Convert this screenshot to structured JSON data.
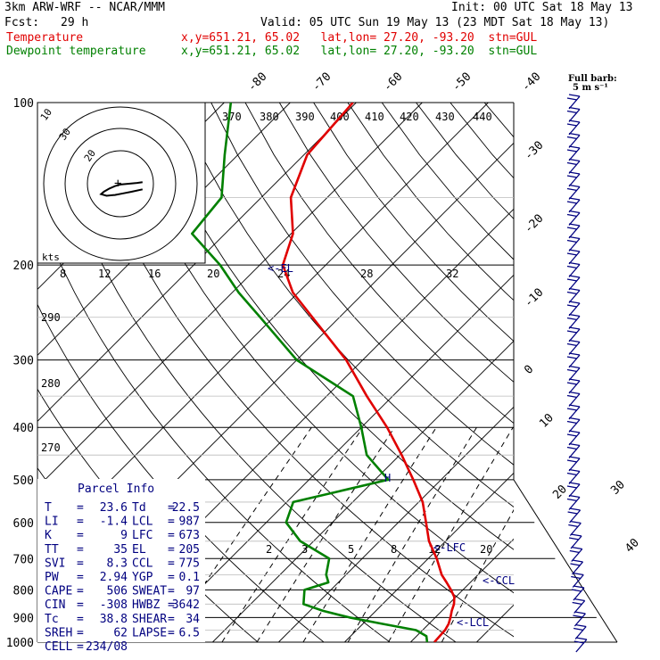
{
  "header": {
    "model": "3km ARW-WRF -- NCAR/MMM",
    "init": "Init: 00 UTC Sat 18 May 13",
    "fcst_label": "Fcst:",
    "fcst_value": "29 h",
    "valid": "Valid: 05 UTC Sun 19 May 13 (23 MDT Sat 18 May 13)"
  },
  "legend": {
    "temperature": {
      "label": "Temperature",
      "info": "x,y=651.21, 65.02   lat,lon= 27.20, -93.20  stn=GUL",
      "color": "#e00000"
    },
    "dewpoint": {
      "label": "Dewpoint temperature",
      "info": "x,y=651.21, 65.02   lat,lon= 27.20, -93.20  stn=GUL",
      "color": "#008000"
    }
  },
  "barb_legend": {
    "line1": "Full barb:",
    "line2": "5 m s⁻¹"
  },
  "hodograph": {
    "units": "kts",
    "rings": [
      "10",
      "20",
      "30"
    ],
    "range_labels": [
      "10",
      "20"
    ]
  },
  "parcel_info": {
    "title": "Parcel Info",
    "rows": [
      {
        "k1": "T",
        "v1": "23.6",
        "k2": "Td",
        "v2": "22.5"
      },
      {
        "k1": "LI",
        "v1": "-1.4",
        "k2": "LCL",
        "v2": "987"
      },
      {
        "k1": "K",
        "v1": "9",
        "k2": "LFC",
        "v2": "673"
      },
      {
        "k1": "TT",
        "v1": "35",
        "k2": "EL",
        "v2": "205"
      },
      {
        "k1": "SVI",
        "v1": "8.3",
        "k2": "CCL",
        "v2": "775"
      },
      {
        "k1": "PW",
        "v1": "2.94",
        "k2": "YGP",
        "v2": "0.1"
      },
      {
        "k1": "CAPE",
        "v1": "506",
        "k2": "SWEAT",
        "v2": "97"
      },
      {
        "k1": "CIN",
        "v1": "-308",
        "k2": "HWBZ",
        "v2": "3642"
      },
      {
        "k1": "Tc",
        "v1": "38.8",
        "k2": "SHEAR",
        "v2": "34"
      },
      {
        "k1": "SREH",
        "v1": "62",
        "k2": "LAPSE",
        "v2": "6.5"
      },
      {
        "k1": "CELL",
        "v1": "234/08",
        "k2": "",
        "v2": ""
      }
    ]
  },
  "level_labels": {
    "el": "<-EL",
    "lfc": "<-LFC",
    "ccl": "<-CCL",
    "lcl": "<-LCL",
    "hwbz": "H"
  },
  "colors": {
    "temperature": "#e00000",
    "dewpoint": "#008000",
    "barbs": "#000080",
    "isobar": "#000000",
    "grid": "#000000"
  },
  "chart_data": {
    "type": "line",
    "title": "",
    "ylabel": "",
    "xlabel": "",
    "pressure_levels": [
      100,
      200,
      300,
      400,
      500,
      600,
      700,
      800,
      900,
      1000
    ],
    "pressure_ticks": [
      "100",
      "200",
      "300",
      "400",
      "500",
      "600",
      "700",
      "800",
      "900",
      "1000"
    ],
    "isotherm_labels": [
      "-80",
      "-70",
      "-60",
      "-50",
      "-40",
      "-30",
      "-20",
      "-10",
      "0",
      "10",
      "20",
      "30",
      "40"
    ],
    "dry_adiabat_labels": [
      "370",
      "380",
      "390",
      "400",
      "410",
      "420",
      "430",
      "440",
      "290",
      "280",
      "270"
    ],
    "mixing_ratio_labels": [
      "2",
      "3",
      "5",
      "8",
      "12",
      "20"
    ],
    "wind_scale_labels": [
      "8",
      "12",
      "16",
      "20",
      "24",
      "28",
      "32"
    ],
    "grid": true,
    "series": [
      {
        "name": "Temperature",
        "color": "#e00000",
        "pressure": [
          1000,
          975,
          950,
          925,
          900,
          875,
          850,
          825,
          800,
          775,
          750,
          700,
          650,
          600,
          550,
          500,
          450,
          400,
          350,
          300,
          250,
          225,
          200,
          175,
          150,
          125,
          100
        ],
        "temp_c": [
          23.6,
          23.5,
          23.4,
          23.0,
          22.3,
          21.5,
          20.8,
          19.8,
          18.2,
          16.4,
          14.5,
          11.3,
          7.5,
          4.2,
          0.6,
          -4.2,
          -9.7,
          -16.1,
          -23.9,
          -32.5,
          -44.1,
          -50.8,
          -56.5,
          -59.7,
          -65.5,
          -69.5,
          -70.5
        ]
      },
      {
        "name": "Dewpoint temperature",
        "color": "#008000",
        "pressure": [
          1000,
          975,
          950,
          925,
          900,
          875,
          850,
          800,
          775,
          750,
          700,
          650,
          600,
          550,
          500,
          450,
          400,
          350,
          300,
          250,
          225,
          200,
          175,
          150,
          125,
          100
        ],
        "temp_c": [
          22.5,
          21.5,
          19.0,
          13.0,
          7.0,
          2.0,
          -2.0,
          -4.0,
          -1.5,
          -3.0,
          -5.0,
          -12.0,
          -17.0,
          -19.0,
          -8.0,
          -15.0,
          -20.0,
          -26.0,
          -40.0,
          -52.0,
          -59.0,
          -66.0,
          -75.0,
          -76.0,
          -82.0,
          -89.0
        ]
      }
    ],
    "hodograph_trace": {
      "u_kts": [
        8,
        6,
        3,
        0,
        -2,
        -4,
        -6,
        -7,
        -5,
        -2,
        1,
        4,
        8
      ],
      "v_kts": [
        -2,
        -1,
        0,
        1,
        3,
        6,
        10,
        13,
        15,
        14,
        12,
        10,
        7
      ]
    }
  }
}
